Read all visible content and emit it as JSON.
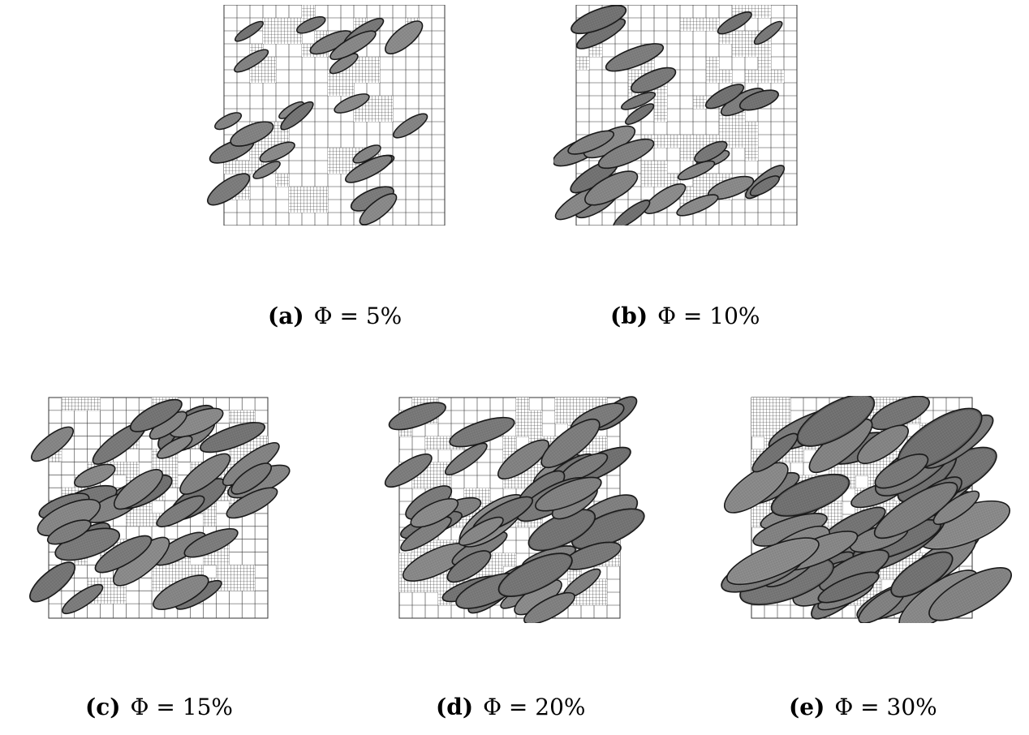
{
  "figure": {
    "subfigures": [
      {
        "id": "a",
        "tag": "(a)",
        "label": "Φ = 5%",
        "volume_fraction_percent": 5
      },
      {
        "id": "b",
        "tag": "(b)",
        "label": "Φ = 10%",
        "volume_fraction_percent": 10
      },
      {
        "id": "c",
        "tag": "(c)",
        "label": "Φ = 15%",
        "volume_fraction_percent": 15
      },
      {
        "id": "d",
        "tag": "(d)",
        "label": "Φ = 20%",
        "volume_fraction_percent": 20
      },
      {
        "id": "e",
        "tag": "(e)",
        "label": "Φ = 30%",
        "volume_fraction_percent": 30
      }
    ],
    "colors": {
      "mesh_line": "#333333",
      "particle_fill": "#8a8a8a",
      "particle_edge": "#1a1a1a"
    }
  }
}
